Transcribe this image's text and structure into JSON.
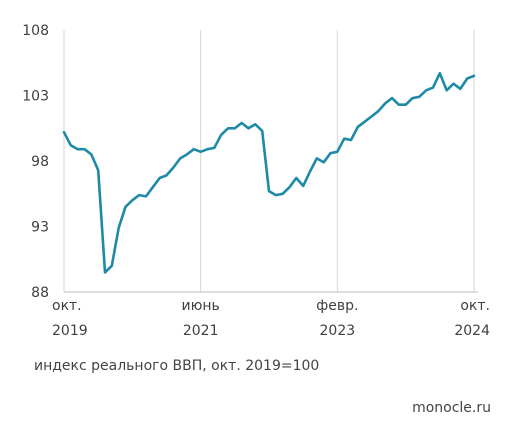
{
  "chart_data": {
    "type": "line",
    "title": "",
    "ylabel": "",
    "xlabel": "",
    "ylim": [
      88,
      108
    ],
    "y_ticks": [
      "88",
      "93",
      "98",
      "103",
      "108"
    ],
    "x_ticks": [
      {
        "line1": "окт.",
        "line2": "2019",
        "x": "2019-10"
      },
      {
        "line1": "июнь",
        "line2": "2021",
        "x": "2021-06"
      },
      {
        "line1": "февр.",
        "line2": "2023",
        "x": "2023-02"
      },
      {
        "line1": "окт.",
        "line2": "2024",
        "x": "2024-10"
      }
    ],
    "grid": "vertical",
    "line_color": "#1e8aa6",
    "series": [
      {
        "x": [
          "2019-10",
          "2019-11",
          "2019-12",
          "2020-01",
          "2020-02",
          "2020-03",
          "2020-04",
          "2020-05",
          "2020-06",
          "2020-07",
          "2020-08",
          "2020-09",
          "2020-10",
          "2020-11",
          "2020-12",
          "2021-01",
          "2021-02",
          "2021-03",
          "2021-04",
          "2021-05",
          "2021-06",
          "2021-07",
          "2021-08",
          "2021-09",
          "2021-10",
          "2021-11",
          "2021-12",
          "2022-01",
          "2022-02",
          "2022-03",
          "2022-04",
          "2022-05",
          "2022-06",
          "2022-07",
          "2022-08",
          "2022-09",
          "2022-10",
          "2022-11",
          "2022-12",
          "2023-01",
          "2023-02",
          "2023-03",
          "2023-04",
          "2023-05",
          "2023-06",
          "2023-07",
          "2023-08",
          "2023-09",
          "2023-10",
          "2023-11",
          "2023-12",
          "2024-01",
          "2024-02",
          "2024-03",
          "2024-04",
          "2024-05",
          "2024-06",
          "2024-07",
          "2024-08",
          "2024-09",
          "2024-10"
        ],
        "values": [
          100.2,
          99.2,
          98.9,
          98.9,
          98.5,
          97.3,
          89.5,
          90.0,
          92.9,
          94.5,
          95.0,
          95.4,
          95.3,
          96.0,
          96.7,
          96.9,
          97.5,
          98.2,
          98.5,
          98.9,
          98.7,
          98.9,
          99.0,
          100.0,
          100.5,
          100.5,
          100.9,
          100.5,
          100.8,
          100.3,
          95.7,
          95.4,
          95.5,
          96.0,
          96.7,
          96.1,
          97.2,
          98.2,
          97.9,
          98.6,
          98.7,
          99.7,
          99.6,
          100.6,
          101.0,
          101.4,
          101.8,
          102.4,
          102.8,
          102.3,
          102.3,
          102.8,
          102.9,
          103.4,
          103.6,
          104.7,
          103.4,
          103.9,
          103.5,
          104.3,
          104.5
        ]
      }
    ]
  },
  "caption": "индекс реального ВВП, окт. 2019=100",
  "source": "monocle.ru"
}
